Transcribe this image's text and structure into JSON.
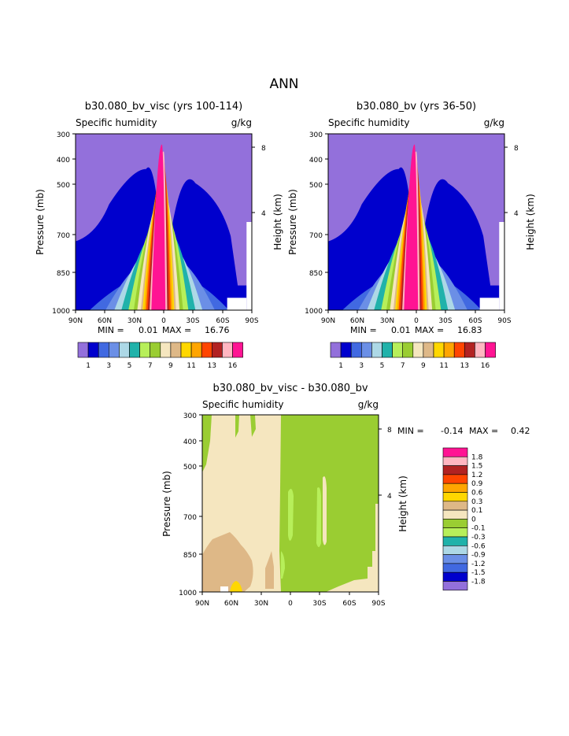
{
  "page_title": "ANN",
  "palettes": {
    "abs": [
      "#9370db",
      "#0000cd",
      "#4169e1",
      "#6b8fe6",
      "#add8e6",
      "#20b2aa",
      "#b7ef5a",
      "#9acd32",
      "#f5e6bf",
      "#deb887",
      "#ffd700",
      "#ffa500",
      "#ff4500",
      "#b22222",
      "#ffb6c1",
      "#ff1493"
    ],
    "diff": [
      "#ff1493",
      "#ffb6c1",
      "#b22222",
      "#ff4500",
      "#ffa500",
      "#ffd700",
      "#deb887",
      "#f5e6bf",
      "#9acd32",
      "#b7ef5a",
      "#20b2aa",
      "#add8e6",
      "#6b8fe6",
      "#4169e1",
      "#0000cd",
      "#9370db"
    ]
  },
  "chart_data": [
    {
      "type": "heatmap",
      "id": "top-left",
      "title": "b30.080_bv_visc (yrs 100-114)",
      "subtitle_left": "Specific humidity",
      "subtitle_right": "g/kg",
      "ylabel": "Pressure (mb)",
      "ylabel_right": "Height (km)",
      "x_ticks": [
        "90N",
        "60N",
        "30N",
        "0",
        "30S",
        "60S",
        "90S"
      ],
      "y_ticks": [
        "300",
        "400",
        "500",
        "700",
        "850",
        "1000"
      ],
      "height_ticks": [
        "8",
        "4"
      ],
      "min_label": "MIN =",
      "min_value": "0.01",
      "max_label": "MAX =",
      "max_value": "16.76",
      "legend_labels": [
        "1",
        "3",
        "5",
        "7",
        "9",
        "11",
        "13",
        "16"
      ],
      "levels": [
        0.01,
        0.5,
        1,
        1.5,
        2,
        3,
        4,
        5,
        6,
        7,
        8,
        9,
        10,
        11,
        12,
        13,
        14,
        16.76
      ]
    },
    {
      "type": "heatmap",
      "id": "top-right",
      "title": "b30.080_bv (yrs 36-50)",
      "subtitle_left": "Specific humidity",
      "subtitle_right": "g/kg",
      "ylabel": "Pressure (mb)",
      "ylabel_right": "Height (km)",
      "x_ticks": [
        "90N",
        "60N",
        "30N",
        "0",
        "30S",
        "60S",
        "90S"
      ],
      "y_ticks": [
        "300",
        "400",
        "500",
        "700",
        "850",
        "1000"
      ],
      "height_ticks": [
        "8",
        "4"
      ],
      "min_label": "MIN =",
      "min_value": "0.01",
      "max_label": "MAX =",
      "max_value": "16.83",
      "legend_labels": [
        "1",
        "3",
        "5",
        "7",
        "9",
        "11",
        "13",
        "16"
      ],
      "levels": [
        0.01,
        0.5,
        1,
        1.5,
        2,
        3,
        4,
        5,
        6,
        7,
        8,
        9,
        10,
        11,
        12,
        13,
        14,
        16.83
      ]
    },
    {
      "type": "heatmap",
      "id": "difference",
      "title": "b30.080_bv_visc - b30.080_bv",
      "subtitle_left": "Specific humidity",
      "subtitle_right": "g/kg",
      "ylabel": "Pressure (mb)",
      "ylabel_right": "Height (km)",
      "x_ticks": [
        "90N",
        "60N",
        "30N",
        "0",
        "30S",
        "60S",
        "90S"
      ],
      "y_ticks": [
        "300",
        "400",
        "500",
        "700",
        "850",
        "1000"
      ],
      "height_ticks": [
        "8",
        "4"
      ],
      "min_label": "MIN =",
      "min_value": "-0.14",
      "max_label": "MAX =",
      "max_value": "0.42",
      "legend_labels": [
        "1.8",
        "1.5",
        "1.2",
        "0.9",
        "0.6",
        "0.3",
        "0.1",
        "0",
        "-0.1",
        "-0.3",
        "-0.6",
        "-0.9",
        "-1.2",
        "-1.5",
        "-1.8"
      ]
    }
  ]
}
